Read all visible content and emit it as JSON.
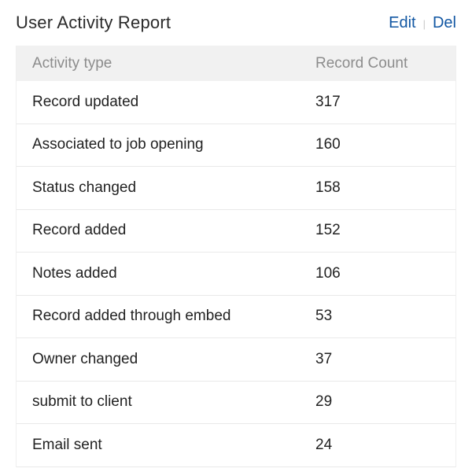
{
  "header": {
    "title": "User Activity Report",
    "edit_label": "Edit",
    "del_label": "Del",
    "divider": "|"
  },
  "table": {
    "columns": [
      "Activity type",
      "Record Count"
    ],
    "rows": [
      {
        "activity": "Record updated",
        "count": "317"
      },
      {
        "activity": "Associated to job opening",
        "count": "160"
      },
      {
        "activity": "Status changed",
        "count": "158"
      },
      {
        "activity": "Record added",
        "count": "152"
      },
      {
        "activity": "Notes added",
        "count": "106"
      },
      {
        "activity": "Record added through embed",
        "count": "53"
      },
      {
        "activity": "Owner changed",
        "count": "37"
      },
      {
        "activity": "submit to client",
        "count": "29"
      },
      {
        "activity": "Email sent",
        "count": "24"
      }
    ]
  },
  "colors": {
    "link_blue": "#1257a3",
    "title_text": "#2b2b2b",
    "header_row_bg": "#f1f1f1",
    "header_row_text": "#8c8c8c",
    "row_text": "#222222",
    "row_border": "#e9e9e9"
  }
}
